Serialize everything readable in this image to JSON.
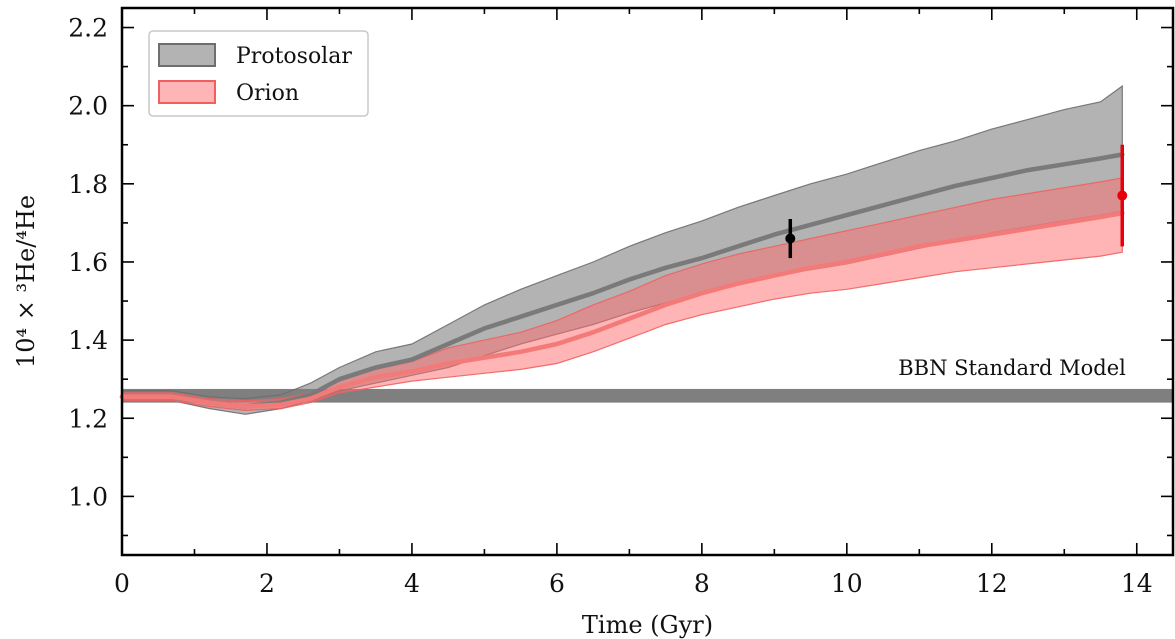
{
  "chart_data": {
    "type": "line",
    "xlabel": "Time (Gyr)",
    "ylabel": "10⁴ × ³He/⁴He",
    "xlim": [
      0,
      14.5
    ],
    "ylim": [
      0.85,
      2.25
    ],
    "xticks": [
      0,
      2,
      4,
      6,
      8,
      10,
      12,
      14
    ],
    "yticks": [
      1.0,
      1.2,
      1.4,
      1.6,
      1.8,
      2.0,
      2.2
    ],
    "xtick_labels": [
      "0",
      "2",
      "4",
      "6",
      "8",
      "10",
      "12",
      "14"
    ],
    "ytick_labels": [
      "1.0",
      "1.2",
      "1.4",
      "1.6",
      "1.8",
      "2.0",
      "2.2"
    ],
    "grid": false,
    "legend_position": "top-left",
    "bbn_band": {
      "label": "BBN Standard Model",
      "y_low": 1.24,
      "y_high": 1.275,
      "color": "#7f7f7f"
    },
    "series": [
      {
        "name": "Protosolar",
        "color": "#808080",
        "x": [
          0,
          0.7,
          1.2,
          1.7,
          2.2,
          2.6,
          3.0,
          3.5,
          4.0,
          4.5,
          5.0,
          5.5,
          6.0,
          6.5,
          7.0,
          7.5,
          8.0,
          8.5,
          9.0,
          9.5,
          10.0,
          10.5,
          11.0,
          11.5,
          12.0,
          12.5,
          13.0,
          13.5,
          13.8
        ],
        "y": [
          1.255,
          1.255,
          1.24,
          1.23,
          1.24,
          1.26,
          1.3,
          1.33,
          1.35,
          1.39,
          1.43,
          1.46,
          1.49,
          1.52,
          1.555,
          1.585,
          1.61,
          1.64,
          1.67,
          1.695,
          1.72,
          1.745,
          1.77,
          1.795,
          1.815,
          1.835,
          1.85,
          1.865,
          1.875
        ],
        "y_low": [
          1.245,
          1.245,
          1.225,
          1.21,
          1.225,
          1.245,
          1.27,
          1.29,
          1.31,
          1.33,
          1.36,
          1.39,
          1.415,
          1.44,
          1.47,
          1.495,
          1.52,
          1.545,
          1.565,
          1.58,
          1.595,
          1.615,
          1.635,
          1.655,
          1.675,
          1.69,
          1.705,
          1.72,
          1.73
        ],
        "y_high": [
          1.27,
          1.27,
          1.255,
          1.25,
          1.26,
          1.29,
          1.33,
          1.37,
          1.39,
          1.44,
          1.49,
          1.53,
          1.565,
          1.6,
          1.64,
          1.675,
          1.705,
          1.74,
          1.77,
          1.8,
          1.825,
          1.855,
          1.885,
          1.91,
          1.94,
          1.965,
          1.99,
          2.01,
          2.05
        ]
      },
      {
        "name": "Orion",
        "color": "#ff7f7f",
        "x": [
          0,
          0.7,
          1.2,
          1.7,
          2.2,
          2.6,
          3.0,
          3.5,
          4.0,
          4.5,
          5.0,
          5.5,
          6.0,
          6.5,
          7.0,
          7.5,
          8.0,
          8.5,
          9.0,
          9.5,
          10.0,
          10.5,
          11.0,
          11.5,
          12.0,
          12.5,
          13.0,
          13.5,
          13.8
        ],
        "y": [
          1.255,
          1.255,
          1.24,
          1.23,
          1.235,
          1.25,
          1.28,
          1.305,
          1.32,
          1.34,
          1.355,
          1.37,
          1.39,
          1.42,
          1.455,
          1.49,
          1.52,
          1.545,
          1.565,
          1.585,
          1.6,
          1.62,
          1.64,
          1.655,
          1.67,
          1.685,
          1.7,
          1.715,
          1.725
        ],
        "y_low": [
          1.245,
          1.245,
          1.23,
          1.22,
          1.225,
          1.24,
          1.265,
          1.28,
          1.295,
          1.305,
          1.315,
          1.325,
          1.34,
          1.37,
          1.405,
          1.44,
          1.465,
          1.485,
          1.505,
          1.52,
          1.53,
          1.545,
          1.56,
          1.575,
          1.585,
          1.595,
          1.605,
          1.615,
          1.625
        ],
        "y_high": [
          1.265,
          1.265,
          1.25,
          1.245,
          1.25,
          1.265,
          1.295,
          1.325,
          1.345,
          1.38,
          1.4,
          1.42,
          1.45,
          1.49,
          1.525,
          1.565,
          1.595,
          1.62,
          1.64,
          1.66,
          1.68,
          1.7,
          1.72,
          1.74,
          1.76,
          1.775,
          1.79,
          1.805,
          1.815
        ]
      }
    ],
    "points": [
      {
        "name": "Protosolar",
        "x": 9.22,
        "y": 1.66,
        "y_err": 0.05,
        "color": "#000000"
      },
      {
        "name": "Orion",
        "x": 13.8,
        "y": 1.77,
        "y_err": 0.13,
        "color": "#e8000b"
      }
    ]
  }
}
